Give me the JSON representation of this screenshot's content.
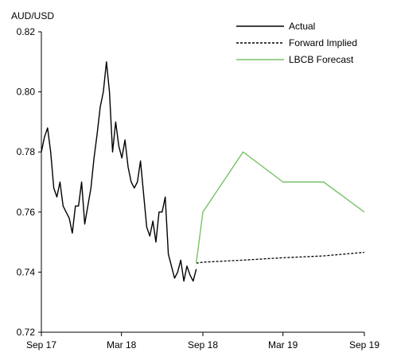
{
  "chart_data": {
    "type": "line",
    "title": "",
    "ylabel": "AUD/USD",
    "xlabel": "",
    "ylim": [
      0.72,
      0.82
    ],
    "y_ticks": [
      "0.72",
      "0.74",
      "0.76",
      "0.78",
      "0.80",
      "0.82"
    ],
    "x_ticks": [
      "Sep 17",
      "Mar 18",
      "Sep 18",
      "Mar 19",
      "Sep 19"
    ],
    "x_tick_dates": [
      "2017-09-01",
      "2018-03-01",
      "2018-09-01",
      "2019-03-01",
      "2019-09-01"
    ],
    "grid": false,
    "legend_position": "top-right",
    "series": [
      {
        "name": "Actual",
        "style": "solid",
        "color": "#000000",
        "x": [
          "2017-09-01",
          "2017-09-08",
          "2017-09-15",
          "2017-09-22",
          "2017-09-29",
          "2017-10-06",
          "2017-10-13",
          "2017-10-20",
          "2017-10-27",
          "2017-11-03",
          "2017-11-10",
          "2017-11-17",
          "2017-11-24",
          "2017-12-01",
          "2017-12-08",
          "2017-12-15",
          "2017-12-22",
          "2017-12-29",
          "2018-01-05",
          "2018-01-12",
          "2018-01-19",
          "2018-01-26",
          "2018-02-02",
          "2018-02-09",
          "2018-02-16",
          "2018-02-23",
          "2018-03-02",
          "2018-03-09",
          "2018-03-16",
          "2018-03-23",
          "2018-03-30",
          "2018-04-06",
          "2018-04-13",
          "2018-04-20",
          "2018-04-27",
          "2018-05-04",
          "2018-05-11",
          "2018-05-18",
          "2018-05-25",
          "2018-06-01",
          "2018-06-08",
          "2018-06-15",
          "2018-06-22",
          "2018-06-29",
          "2018-07-06",
          "2018-07-13",
          "2018-07-20",
          "2018-07-27",
          "2018-08-03",
          "2018-08-10",
          "2018-08-17"
        ],
        "values": [
          0.78,
          0.785,
          0.788,
          0.78,
          0.768,
          0.765,
          0.77,
          0.762,
          0.76,
          0.758,
          0.753,
          0.762,
          0.762,
          0.77,
          0.756,
          0.762,
          0.768,
          0.778,
          0.786,
          0.795,
          0.8,
          0.81,
          0.8,
          0.78,
          0.79,
          0.782,
          0.778,
          0.784,
          0.775,
          0.77,
          0.768,
          0.77,
          0.777,
          0.766,
          0.755,
          0.752,
          0.757,
          0.75,
          0.76,
          0.76,
          0.765,
          0.746,
          0.742,
          0.738,
          0.74,
          0.744,
          0.737,
          0.742,
          0.739,
          0.737,
          0.741
        ]
      },
      {
        "name": "Forward Implied",
        "style": "dashed",
        "color": "#000000",
        "x": [
          "2018-08-17",
          "2018-09-01",
          "2018-12-01",
          "2019-03-01",
          "2019-06-01",
          "2019-09-01"
        ],
        "values": [
          0.743,
          0.7433,
          0.744,
          0.7448,
          0.7454,
          0.7466
        ]
      },
      {
        "name": "LBCB Forecast",
        "style": "solid",
        "color": "#7ac16a",
        "x": [
          "2018-08-17",
          "2018-09-01",
          "2018-12-01",
          "2019-03-01",
          "2019-06-01",
          "2019-09-01"
        ],
        "values": [
          0.743,
          0.76,
          0.78,
          0.77,
          0.77,
          0.76
        ]
      }
    ]
  }
}
